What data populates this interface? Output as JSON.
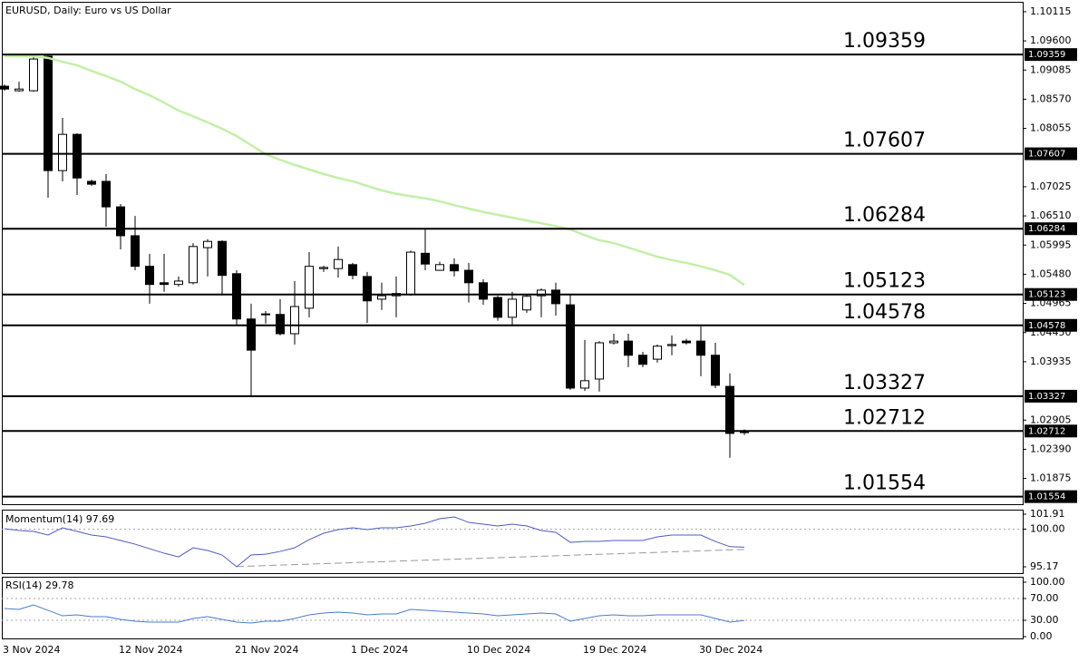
{
  "chart_data": [
    {
      "type": "candlestick",
      "title": "EURUSD, Daily:  Euro vs US Dollar",
      "categories": [
        "3 Nov 2024",
        null,
        null,
        null,
        null,
        null,
        null,
        null,
        "12 Nov 2024",
        null,
        null,
        null,
        null,
        null,
        null,
        null,
        "21 Nov 2024",
        null,
        null,
        null,
        null,
        null,
        null,
        null,
        "1 Dec 2024",
        null,
        null,
        null,
        null,
        null,
        null,
        null,
        "10 Dec 2024",
        null,
        null,
        null,
        null,
        null,
        null,
        null,
        "19 Dec 2024",
        null,
        null,
        null,
        null,
        null,
        null,
        null,
        "30 Dec 2024",
        null,
        null,
        null
      ],
      "open": [
        1.088,
        1.0872,
        1.0872,
        1.0933,
        1.0731,
        1.0795,
        1.0712,
        1.0712,
        1.0667,
        1.0616,
        1.0562,
        1.0533,
        1.053,
        1.0533,
        1.0595,
        1.0606,
        1.0549,
        1.0469,
        1.0477,
        1.0477,
        1.0443,
        1.0488,
        1.0558,
        1.0558,
        1.0565,
        1.0544,
        1.0504,
        1.051,
        1.0512,
        1.0585,
        1.0555,
        1.0565,
        1.0555,
        1.0533,
        1.0507,
        1.0472,
        1.0485,
        1.051,
        1.052,
        1.0494,
        1.0347,
        1.0363,
        1.0427,
        1.043,
        1.0405,
        1.0398,
        1.0422,
        1.043,
        1.043,
        1.0405,
        1.035,
        1.0269
      ],
      "high": [
        1.0883,
        1.0888,
        1.0933,
        1.0936,
        1.0824,
        1.0797,
        1.0715,
        1.0725,
        1.0672,
        1.0651,
        1.0584,
        1.0584,
        1.0544,
        1.0603,
        1.061,
        1.0608,
        1.0555,
        1.0496,
        1.0483,
        1.0504,
        1.0536,
        1.0587,
        1.0563,
        1.0597,
        1.0568,
        1.0552,
        1.0533,
        1.0544,
        1.059,
        1.0627,
        1.057,
        1.0576,
        1.0568,
        1.0539,
        1.051,
        1.0517,
        1.0512,
        1.0523,
        1.0533,
        1.0512,
        1.0432,
        1.043,
        1.0443,
        1.0443,
        1.0411,
        1.0424,
        1.044,
        1.0434,
        1.0456,
        1.0427,
        1.0373,
        1.0274
      ],
      "low": [
        1.0872,
        1.087,
        1.087,
        1.0683,
        1.0712,
        1.0688,
        1.0704,
        1.0632,
        1.0592,
        1.0555,
        1.0496,
        1.0517,
        1.0526,
        1.053,
        1.0544,
        1.0512,
        1.0459,
        1.0334,
        1.0461,
        1.044,
        1.0424,
        1.0472,
        1.0552,
        1.0542,
        1.0539,
        1.0462,
        1.0485,
        1.0472,
        1.051,
        1.0555,
        1.0554,
        1.0544,
        1.0498,
        1.0494,
        1.0466,
        1.0456,
        1.048,
        1.0472,
        1.0475,
        1.0344,
        1.0342,
        1.0341,
        1.0424,
        1.0384,
        1.0384,
        1.0392,
        1.0405,
        1.0424,
        1.0368,
        1.0347,
        1.0224,
        1.0264
      ],
      "close": [
        1.0875,
        1.0875,
        1.0928,
        1.0731,
        1.0795,
        1.0718,
        1.0707,
        1.0667,
        1.0616,
        1.0562,
        1.053,
        1.053,
        1.0536,
        1.0597,
        1.0606,
        1.0546,
        1.0469,
        1.0414,
        1.0478,
        1.0443,
        1.0491,
        1.0562,
        1.056,
        1.0574,
        1.0546,
        1.0501,
        1.051,
        1.0514,
        1.0587,
        1.0566,
        1.0565,
        1.0554,
        1.0533,
        1.0504,
        1.0472,
        1.0504,
        1.0509,
        1.052,
        1.0496,
        1.0347,
        1.036,
        1.0427,
        1.043,
        1.0405,
        1.0389,
        1.0421,
        1.0424,
        1.0427,
        1.0405,
        1.0352,
        1.0267,
        1.027
      ],
      "ma": {
        "color": "#c2f0a6",
        "values": [
          1.0933,
          1.0933,
          1.0933,
          1.093,
          1.0923,
          1.0917,
          1.0907,
          1.0898,
          1.0888,
          1.0875,
          1.0864,
          1.0851,
          1.0837,
          1.0827,
          1.0816,
          1.0805,
          1.0792,
          1.0776,
          1.076,
          1.075,
          1.0741,
          1.0733,
          1.0725,
          1.0718,
          1.0712,
          1.0704,
          1.0696,
          1.069,
          1.0686,
          1.0682,
          1.0677,
          1.067,
          1.0664,
          1.0658,
          1.0653,
          1.0648,
          1.0643,
          1.0638,
          1.0633,
          1.0627,
          1.0617,
          1.0608,
          1.0603,
          1.0595,
          1.0587,
          1.0579,
          1.0573,
          1.0568,
          1.0562,
          1.0555,
          1.0547,
          1.0529
        ]
      },
      "up_color": "#ffffff",
      "down_color": "#000000",
      "levels": [
        1.09359,
        1.07607,
        1.06284,
        1.05123,
        1.04578,
        1.03327,
        1.02712,
        1.01554
      ],
      "ylim": [
        1.0142,
        1.1029
      ],
      "yticks": [
        1.10115,
        {
          "value": 1.096,
          "label": "1.09600"
        },
        1.09085,
        {
          "value": 1.0857,
          "label": "1.08570"
        },
        1.08055,
        1.07025,
        {
          "value": 1.0651,
          "label": "1.06510"
        },
        1.05995,
        {
          "value": 1.0548,
          "label": "1.05480"
        },
        1.04965,
        {
          "value": 1.0445,
          "label": "1.04450"
        },
        1.03935,
        1.02905,
        {
          "value": 1.0239,
          "label": "1.02390"
        },
        1.01875
      ]
    },
    {
      "type": "line",
      "title": "Momentum(14) 97.69",
      "color": "#4a5cc4",
      "values": [
        100.05,
        99.82,
        99.7,
        99.24,
        100.17,
        99.7,
        99.24,
        99.0,
        98.54,
        98.07,
        97.49,
        96.91,
        96.44,
        97.61,
        97.26,
        96.68,
        95.17,
        96.68,
        96.79,
        97.14,
        97.61,
        98.65,
        99.47,
        99.93,
        100.17,
        99.93,
        100.17,
        100.17,
        100.4,
        100.75,
        101.33,
        101.56,
        100.86,
        100.63,
        100.4,
        100.63,
        100.4,
        99.82,
        99.59,
        98.3,
        98.42,
        98.42,
        98.54,
        98.54,
        98.54,
        99.0,
        99.24,
        99.24,
        99.24,
        98.42,
        97.75,
        97.69
      ],
      "levels": [
        100
      ],
      "trendline": [
        {
          "index": 16,
          "value": 95.2
        },
        {
          "index": 51,
          "value": 97.4
        }
      ],
      "ylim": [
        94.36,
        102.49
      ],
      "yticks": [
        101.91,
        {
          "value": 100,
          "label": "100.00"
        },
        95.17
      ]
    },
    {
      "type": "line",
      "title": "RSI(14) 29.78",
      "color": "#4a7bd0",
      "values": [
        51.7,
        50,
        58.3,
        48.3,
        38.3,
        40,
        36.7,
        36.7,
        31.7,
        28.3,
        26.7,
        26.7,
        26.7,
        33.3,
        36.7,
        31.7,
        26.7,
        25,
        28.3,
        28.3,
        33.3,
        40,
        43.3,
        45,
        43.3,
        40,
        41.7,
        41.7,
        50,
        48.3,
        46.7,
        45,
        43.3,
        41.7,
        38.3,
        40,
        41.7,
        43.3,
        41.7,
        28.3,
        33.3,
        38.3,
        40,
        38.3,
        38.3,
        40,
        40,
        40,
        40,
        33.3,
        26.7,
        29.78
      ],
      "levels": [
        70,
        30
      ],
      "ylim": [
        -3.3,
        110
      ],
      "yticks": [
        {
          "value": 100,
          "label": "100.00"
        },
        {
          "value": 70,
          "label": "70.00"
        },
        {
          "value": 30,
          "label": "30.00"
        },
        {
          "value": 0,
          "label": "0.00"
        }
      ]
    }
  ]
}
